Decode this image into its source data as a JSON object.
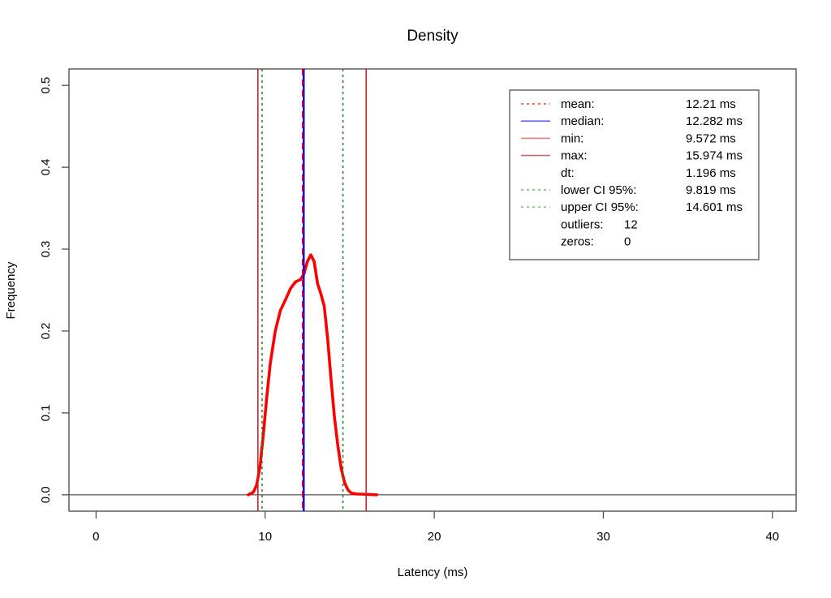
{
  "chart_data": {
    "type": "line",
    "title": "Density",
    "xlabel": "Latency (ms)",
    "ylabel": "Frequency",
    "xlim": [
      -1.6,
      41.4
    ],
    "ylim": [
      -0.02,
      0.52
    ],
    "x_ticks": [
      0,
      10,
      20,
      30,
      40
    ],
    "x_tick_labels": [
      "0",
      "10",
      "20",
      "30",
      "40"
    ],
    "y_ticks": [
      0.0,
      0.1,
      0.2,
      0.3,
      0.4,
      0.5
    ],
    "y_tick_labels": [
      "0.0",
      "0.1",
      "0.2",
      "0.3",
      "0.4",
      "0.5"
    ],
    "grid": false,
    "legend_position": "top-right",
    "series": [
      {
        "color": "#ff0000",
        "x": [
          9.0,
          9.3,
          9.5,
          9.7,
          9.9,
          10.1,
          10.3,
          10.6,
          10.9,
          11.2,
          11.5,
          11.8,
          12.1,
          12.3,
          12.5,
          12.7,
          12.9,
          13.1,
          13.3,
          13.5,
          13.7,
          13.9,
          14.1,
          14.3,
          14.5,
          14.7,
          14.9,
          15.1,
          15.4,
          15.7,
          16.1,
          16.6
        ],
        "y": [
          0.0,
          0.003,
          0.012,
          0.035,
          0.075,
          0.12,
          0.16,
          0.2,
          0.225,
          0.238,
          0.252,
          0.26,
          0.263,
          0.27,
          0.285,
          0.293,
          0.285,
          0.258,
          0.245,
          0.23,
          0.19,
          0.14,
          0.095,
          0.06,
          0.032,
          0.015,
          0.006,
          0.002,
          0.001,
          0.0008,
          0.0005,
          0.0
        ]
      }
    ],
    "vlines": [
      {
        "kind": "min",
        "x": 9.572,
        "color": "#cd2626",
        "dash": "solid"
      },
      {
        "kind": "lower-ci",
        "x": 9.819,
        "color": "#228b22",
        "dash": "dotted"
      },
      {
        "kind": "median",
        "x": 12.282,
        "color": "#0000ff",
        "dash": "solid"
      },
      {
        "kind": "mean",
        "x": 12.21,
        "color": "#ff0000",
        "dash": "dashed"
      },
      {
        "kind": "upper-ci",
        "x": 14.601,
        "color": "#228b22",
        "dash": "dotted"
      },
      {
        "kind": "max",
        "x": 15.974,
        "color": "#cd2626",
        "dash": "solid"
      }
    ],
    "hline": {
      "y": 0,
      "color": "#666666"
    },
    "legend": [
      {
        "label": "mean:",
        "value": "12.21 ms",
        "color": "#ff6666",
        "dash": "dotted"
      },
      {
        "label": "median:",
        "value": "12.282 ms",
        "color": "#6666ff",
        "dash": "solid"
      },
      {
        "label": "min:",
        "value": "9.572 ms",
        "color": "#e08080",
        "dash": "solid"
      },
      {
        "label": "max:",
        "value": "15.974 ms",
        "color": "#cc6666",
        "dash": "solid"
      },
      {
        "label": "dt:",
        "value": "1.196 ms",
        "color": "",
        "dash": "none"
      },
      {
        "label": "lower CI 95%:",
        "value": "9.819 ms",
        "color": "#88cc88",
        "dash": "dotted"
      },
      {
        "label": "upper CI 95%:",
        "value": "14.601 ms",
        "color": "#88cc88",
        "dash": "dotted"
      },
      {
        "label": "outliers:",
        "value": "12",
        "color": "",
        "dash": "none"
      },
      {
        "label": "zeros:",
        "value": "0",
        "color": "",
        "dash": "none"
      }
    ]
  }
}
